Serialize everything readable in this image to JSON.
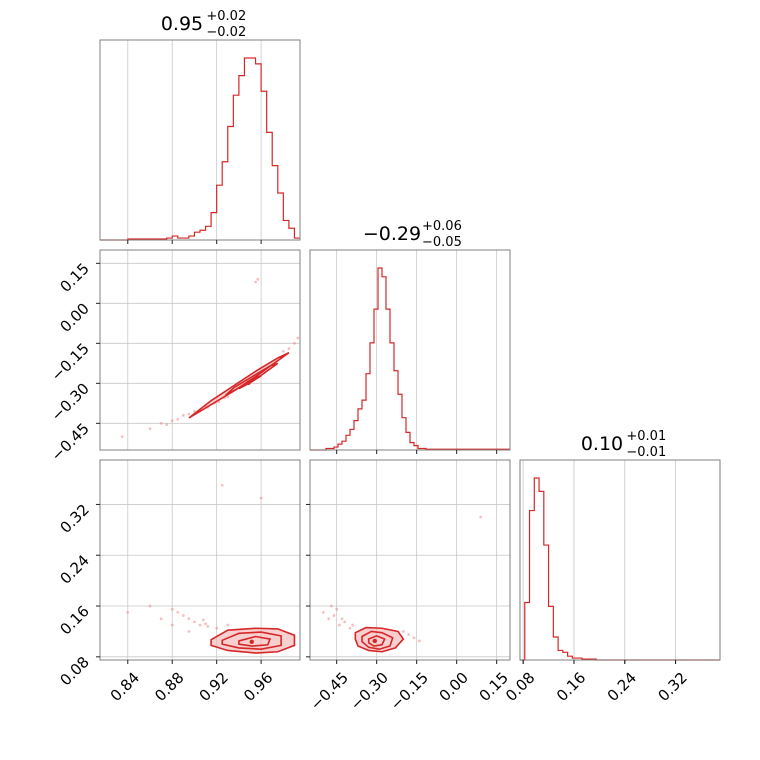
{
  "chart_data": {
    "type": "corner",
    "color": "#d62728",
    "parameters": [
      {
        "title_value": "0.95",
        "title_upper": "+0.02",
        "title_lower": "−0.02",
        "range": [
          0.815,
          0.995
        ],
        "ticks": [
          0.84,
          0.88,
          0.92,
          0.96
        ],
        "tick_labels": [
          "0.84",
          "0.88",
          "0.92",
          "0.96"
        ],
        "hist_bins": [
          0.815,
          0.82,
          0.825,
          0.83,
          0.835,
          0.84,
          0.845,
          0.85,
          0.855,
          0.86,
          0.865,
          0.87,
          0.875,
          0.88,
          0.885,
          0.89,
          0.895,
          0.9,
          0.905,
          0.91,
          0.915,
          0.92,
          0.925,
          0.93,
          0.935,
          0.94,
          0.945,
          0.95,
          0.955,
          0.96,
          0.965,
          0.97,
          0.975,
          0.98,
          0.985,
          0.99,
          0.995
        ],
        "hist_counts": [
          0,
          0,
          0,
          0,
          0,
          0.5,
          0.5,
          0.5,
          0.5,
          0.5,
          0.5,
          0.5,
          1,
          2,
          1,
          1,
          2,
          4,
          5,
          7,
          14,
          28,
          40,
          58,
          74,
          84,
          93,
          93,
          90,
          76,
          55,
          38,
          24,
          10,
          6,
          1
        ]
      },
      {
        "title_value": "−0.29",
        "title_upper": "+0.06",
        "title_lower": "−0.05",
        "range": [
          -0.55,
          0.2
        ],
        "ticks": [
          -0.45,
          -0.3,
          -0.15,
          0.0,
          0.15
        ],
        "tick_labels": [
          "−0.45",
          "−0.30",
          "−0.15",
          "0.00",
          "0.15"
        ],
        "hist_bins": [
          -0.55,
          -0.535,
          -0.52,
          -0.505,
          -0.49,
          -0.475,
          -0.46,
          -0.445,
          -0.43,
          -0.415,
          -0.4,
          -0.385,
          -0.37,
          -0.355,
          -0.34,
          -0.325,
          -0.31,
          -0.295,
          -0.28,
          -0.265,
          -0.25,
          -0.235,
          -0.22,
          -0.205,
          -0.19,
          -0.175,
          -0.16,
          -0.145,
          -0.13,
          -0.115,
          -0.1,
          -0.085,
          -0.07,
          -0.055,
          -0.04,
          -0.025,
          -0.01,
          0.005,
          0.02,
          0.035,
          0.05,
          0.065,
          0.08,
          0.095,
          0.11,
          0.125,
          0.14,
          0.155,
          0.17,
          0.185,
          0.2
        ],
        "hist_counts": [
          0,
          0,
          0,
          0,
          1,
          1,
          2,
          4,
          6,
          10,
          14,
          20,
          28,
          34,
          52,
          73,
          96,
          124,
          118,
          96,
          73,
          54,
          38,
          22,
          12,
          5,
          3,
          1,
          1,
          0.5,
          0.5,
          0.5,
          0.5,
          0.5,
          0.5,
          0.5,
          0.5,
          0.5,
          0.5,
          0.5,
          0.5,
          0.5,
          0.5,
          0.5,
          0.5,
          0.5,
          0.5,
          0.5,
          0.5,
          0.5
        ]
      },
      {
        "title_value": "0.10",
        "title_upper": "+0.01",
        "title_lower": "−0.01",
        "range": [
          0.075,
          0.39
        ],
        "ticks": [
          0.08,
          0.16,
          0.24,
          0.32
        ],
        "tick_labels": [
          "0.08",
          "0.16",
          "0.24",
          "0.32"
        ],
        "hist_bins": [
          0.075,
          0.0825,
          0.09,
          0.0975,
          0.105,
          0.1125,
          0.12,
          0.1275,
          0.135,
          0.1425,
          0.15,
          0.1575,
          0.165,
          0.1725,
          0.18,
          0.1875,
          0.195,
          0.39
        ],
        "hist_counts": [
          0,
          30,
          78,
          95,
          88,
          60,
          28,
          12,
          5,
          4,
          2,
          1,
          1,
          0.5,
          0.5,
          0.5,
          0
        ]
      }
    ],
    "pairs": [
      {
        "x_param": 0,
        "y_param": 1,
        "contours": [
          [
            [
              0.895,
              -0.43
            ],
            [
              0.915,
              -0.38
            ],
            [
              0.935,
              -0.33
            ],
            [
              0.955,
              -0.275
            ],
            [
              0.975,
              -0.215
            ],
            [
              0.985,
              -0.185
            ],
            [
              0.975,
              -0.205
            ],
            [
              0.955,
              -0.255
            ],
            [
              0.935,
              -0.31
            ],
            [
              0.915,
              -0.365
            ],
            [
              0.895,
              -0.43
            ]
          ],
          [
            [
              0.928,
              -0.345
            ],
            [
              0.945,
              -0.305
            ],
            [
              0.96,
              -0.27
            ],
            [
              0.975,
              -0.225
            ],
            [
              0.968,
              -0.235
            ],
            [
              0.952,
              -0.275
            ],
            [
              0.936,
              -0.315
            ],
            [
              0.928,
              -0.345
            ]
          ],
          [
            [
              0.94,
              -0.32
            ],
            [
              0.95,
              -0.298
            ],
            [
              0.96,
              -0.272
            ],
            [
              0.956,
              -0.276
            ],
            [
              0.946,
              -0.302
            ],
            [
              0.94,
              -0.32
            ]
          ]
        ],
        "points": [
          [
            0.86,
            -0.47
          ],
          [
            0.87,
            -0.45
          ],
          [
            0.875,
            -0.455
          ],
          [
            0.88,
            -0.44
          ],
          [
            0.885,
            -0.435
          ],
          [
            0.89,
            -0.42
          ],
          [
            0.895,
            -0.415
          ],
          [
            0.9,
            -0.405
          ],
          [
            0.905,
            -0.4
          ],
          [
            0.91,
            -0.385
          ],
          [
            0.912,
            -0.39
          ],
          [
            0.918,
            -0.375
          ],
          [
            0.922,
            -0.37
          ],
          [
            0.927,
            -0.355
          ],
          [
            0.93,
            -0.35
          ],
          [
            0.98,
            -0.18
          ],
          [
            0.985,
            -0.17
          ],
          [
            0.99,
            -0.15
          ],
          [
            0.993,
            -0.13
          ],
          [
            0.955,
            0.08
          ],
          [
            0.957,
            0.09
          ],
          [
            0.835,
            -0.5
          ]
        ]
      },
      {
        "x_param": 0,
        "y_param": 2,
        "contours": [
          [
            [
              0.915,
              0.107
            ],
            [
              0.93,
              0.122
            ],
            [
              0.955,
              0.125
            ],
            [
              0.975,
              0.124
            ],
            [
              0.99,
              0.114
            ],
            [
              0.99,
              0.098
            ],
            [
              0.975,
              0.088
            ],
            [
              0.955,
              0.086
            ],
            [
              0.93,
              0.09
            ],
            [
              0.915,
              0.098
            ],
            [
              0.915,
              0.107
            ]
          ],
          [
            [
              0.925,
              0.106
            ],
            [
              0.94,
              0.117
            ],
            [
              0.96,
              0.119
            ],
            [
              0.978,
              0.113
            ],
            [
              0.978,
              0.098
            ],
            [
              0.96,
              0.092
            ],
            [
              0.94,
              0.094
            ],
            [
              0.925,
              0.1
            ],
            [
              0.925,
              0.106
            ]
          ],
          [
            [
              0.94,
              0.105
            ],
            [
              0.955,
              0.112
            ],
            [
              0.968,
              0.108
            ],
            [
              0.966,
              0.099
            ],
            [
              0.952,
              0.097
            ],
            [
              0.94,
              0.1
            ],
            [
              0.94,
              0.105
            ]
          ]
        ],
        "points": [
          [
            0.84,
            0.15
          ],
          [
            0.86,
            0.16
          ],
          [
            0.87,
            0.14
          ],
          [
            0.88,
            0.155
          ],
          [
            0.885,
            0.15
          ],
          [
            0.89,
            0.145
          ],
          [
            0.895,
            0.14
          ],
          [
            0.9,
            0.135
          ],
          [
            0.905,
            0.13
          ],
          [
            0.91,
            0.132
          ],
          [
            0.912,
            0.128
          ],
          [
            0.908,
            0.138
          ],
          [
            0.92,
            0.125
          ],
          [
            0.93,
            0.13
          ],
          [
            0.96,
            0.33
          ],
          [
            0.925,
            0.35
          ],
          [
            0.895,
            0.12
          ],
          [
            0.88,
            0.13
          ]
        ]
      },
      {
        "x_param": 1,
        "y_param": 2,
        "contours": [
          [
            [
              -0.38,
              0.118
            ],
            [
              -0.34,
              0.126
            ],
            [
              -0.28,
              0.125
            ],
            [
              -0.22,
              0.12
            ],
            [
              -0.2,
              0.108
            ],
            [
              -0.23,
              0.094
            ],
            [
              -0.28,
              0.088
            ],
            [
              -0.33,
              0.09
            ],
            [
              -0.37,
              0.097
            ],
            [
              -0.38,
              0.108
            ],
            [
              -0.38,
              0.118
            ]
          ],
          [
            [
              -0.355,
              0.112
            ],
            [
              -0.32,
              0.12
            ],
            [
              -0.28,
              0.118
            ],
            [
              -0.24,
              0.11
            ],
            [
              -0.25,
              0.097
            ],
            [
              -0.29,
              0.092
            ],
            [
              -0.33,
              0.095
            ],
            [
              -0.355,
              0.104
            ],
            [
              -0.355,
              0.112
            ]
          ],
          [
            [
              -0.33,
              0.108
            ],
            [
              -0.3,
              0.113
            ],
            [
              -0.27,
              0.108
            ],
            [
              -0.28,
              0.099
            ],
            [
              -0.31,
              0.097
            ],
            [
              -0.33,
              0.102
            ],
            [
              -0.33,
              0.108
            ]
          ]
        ],
        "points": [
          [
            -0.5,
            0.15
          ],
          [
            -0.48,
            0.14
          ],
          [
            -0.46,
            0.145
          ],
          [
            -0.44,
            0.13
          ],
          [
            -0.42,
            0.135
          ],
          [
            -0.4,
            0.125
          ],
          [
            -0.45,
            0.155
          ],
          [
            -0.47,
            0.16
          ],
          [
            -0.39,
            0.13
          ],
          [
            -0.2,
            0.12
          ],
          [
            -0.18,
            0.115
          ],
          [
            -0.16,
            0.11
          ],
          [
            -0.14,
            0.105
          ],
          [
            0.09,
            0.3
          ],
          [
            -0.43,
            0.14
          ]
        ]
      }
    ]
  }
}
